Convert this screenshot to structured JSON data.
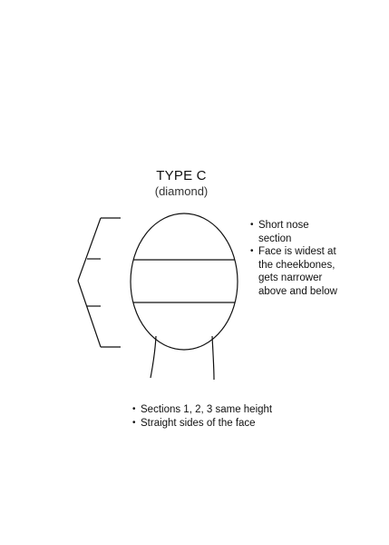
{
  "diagram": {
    "title": "TYPE C",
    "subtitle": "(diamond)",
    "side_notes": [
      "Short nose section",
      "Face is widest at the cheekbones, gets narrower above and below"
    ],
    "bottom_notes": [
      "Sections 1, 2, 3 same height",
      "Straight sides of the face"
    ]
  }
}
